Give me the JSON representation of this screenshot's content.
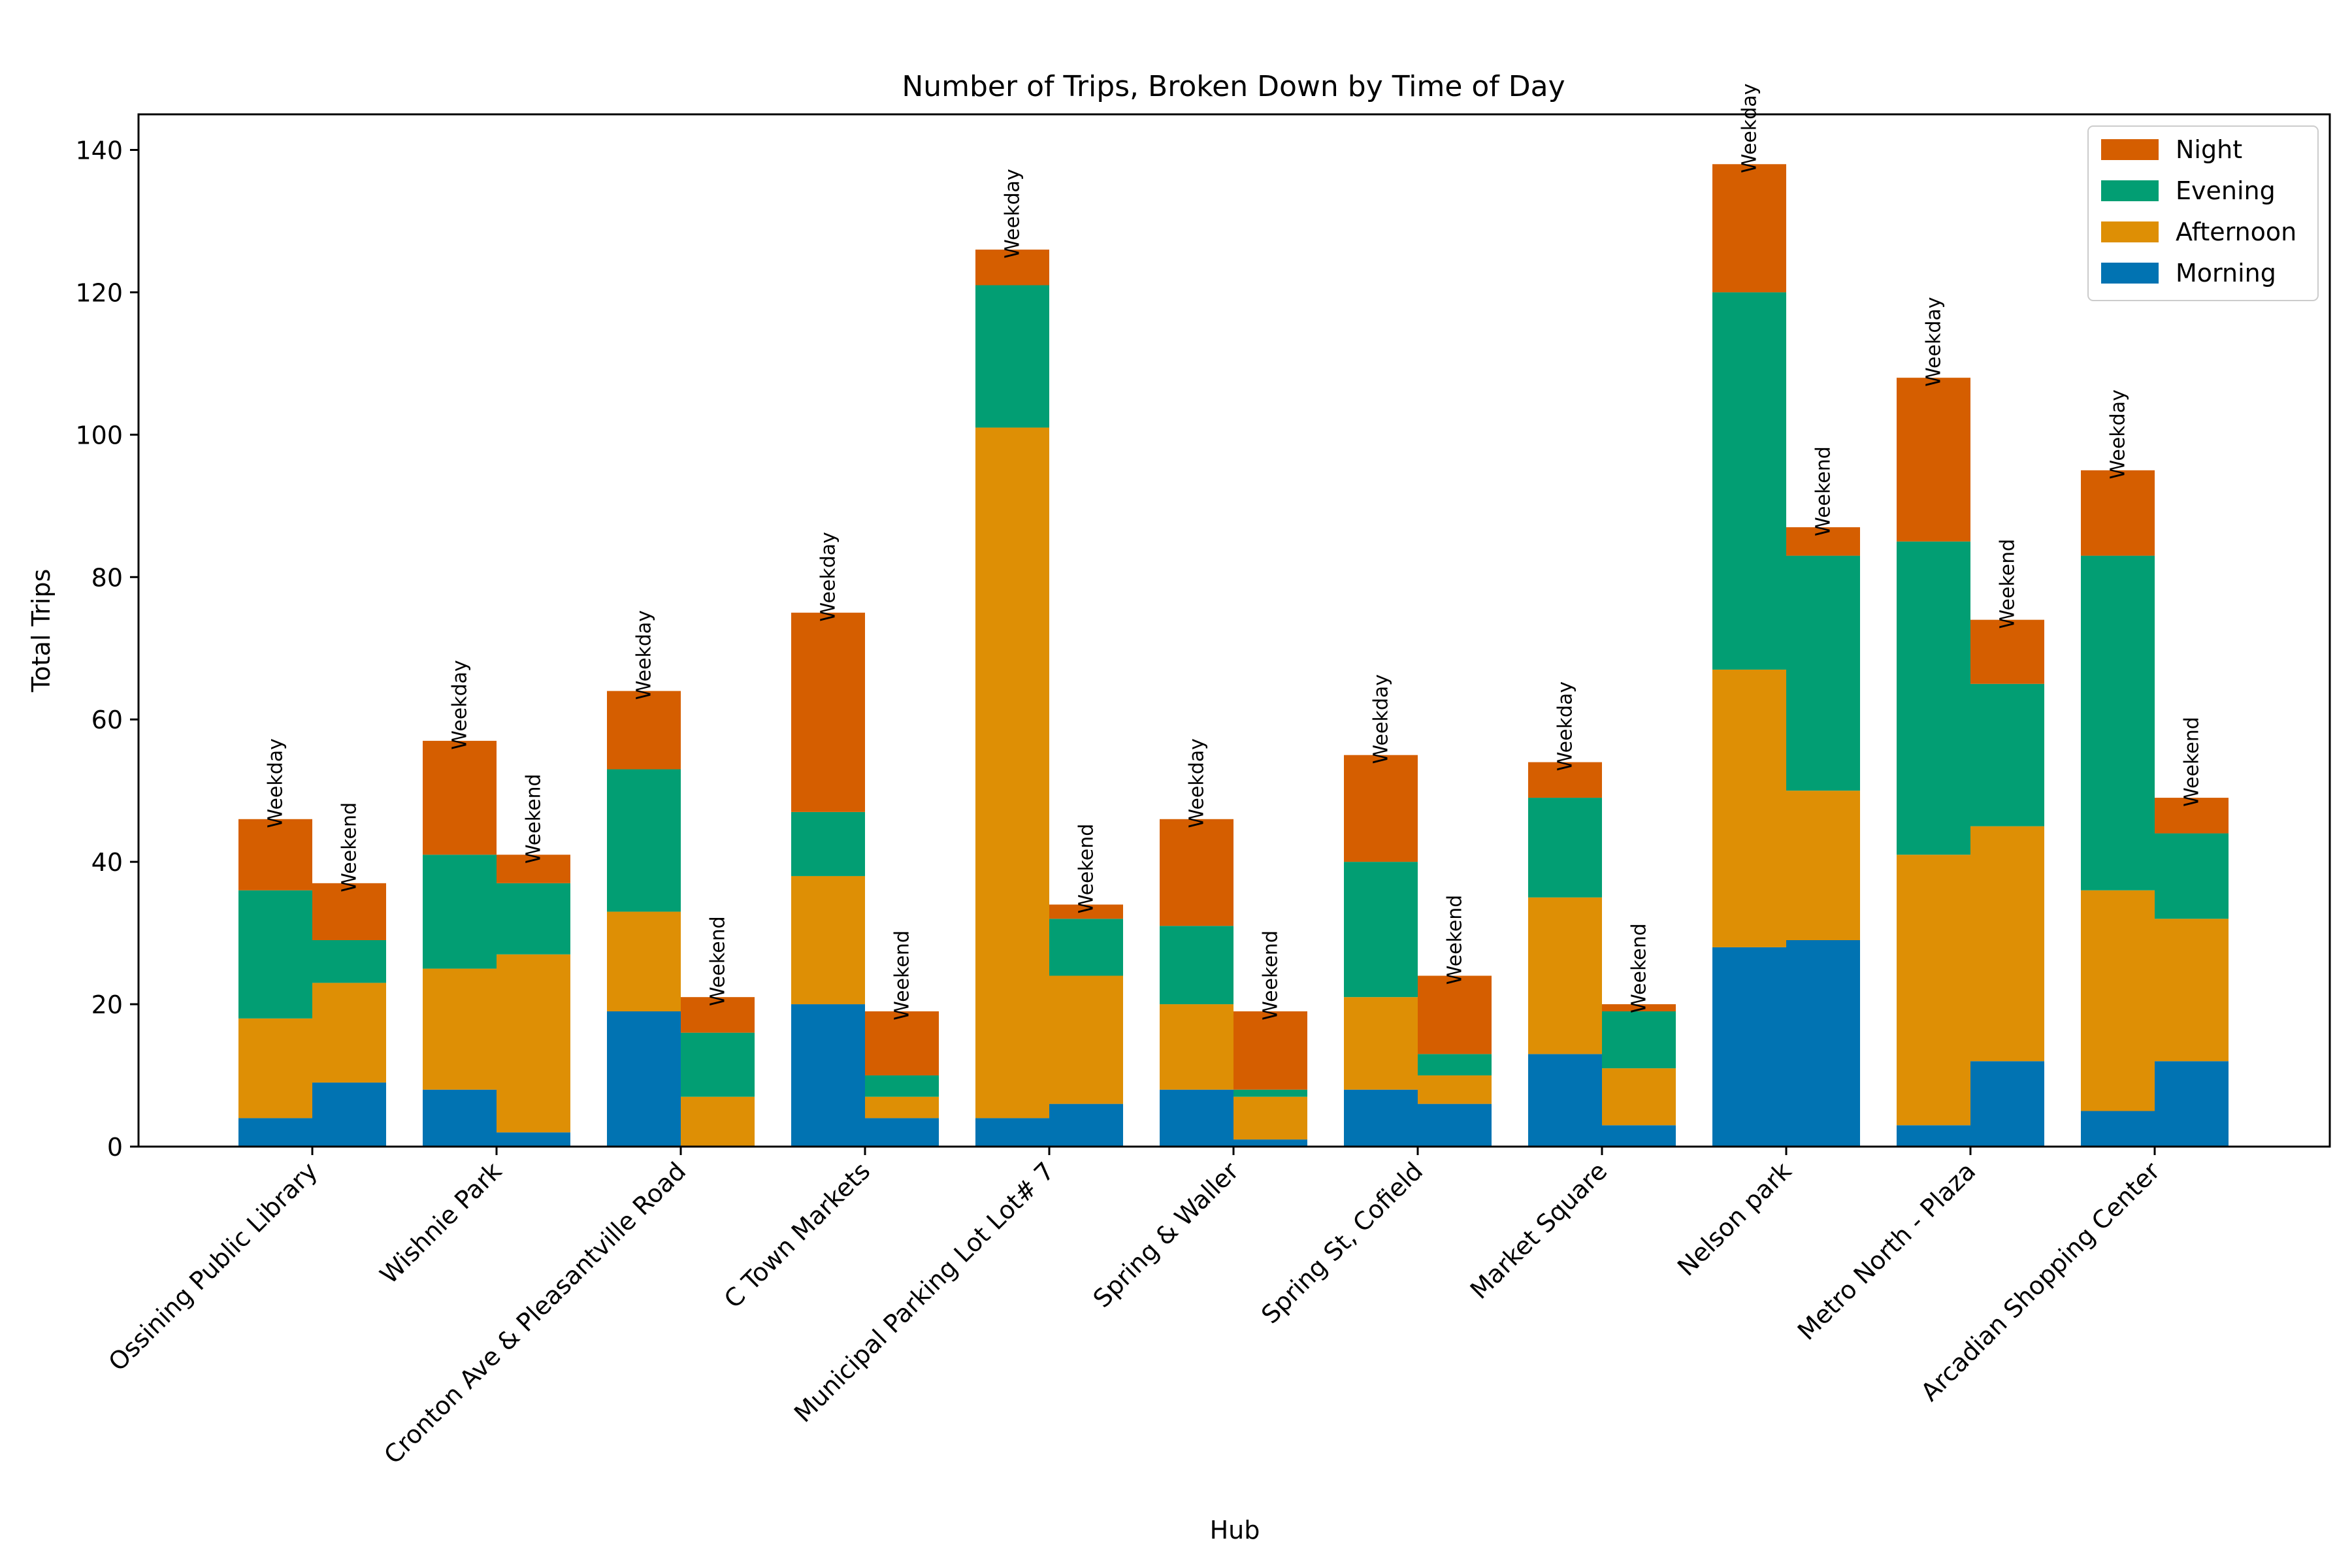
{
  "chart_data": {
    "type": "bar",
    "stacked": true,
    "grouped": true,
    "title": "Number of Trips, Broken Down by Time of Day",
    "xlabel": "Hub",
    "ylabel": "Total Trips",
    "ylim": [
      0,
      145
    ],
    "yticks": [
      0,
      20,
      40,
      60,
      80,
      100,
      120,
      140
    ],
    "grid": false,
    "legend_position": "top-right",
    "groups": [
      "Weekday",
      "Weekend"
    ],
    "categories": [
      "Ossining Public Library",
      "Wishnie Park",
      "Cronton Ave & Pleasantville Road",
      "C Town Markets",
      "Municipal Parking Lot Lot# 7",
      "Spring & Waller",
      "Spring St, Cofield",
      "Market Square",
      "Nelson park",
      "Metro North - Plaza",
      "Arcadian Shopping Center"
    ],
    "series": [
      {
        "name": "Morning",
        "color": "#0173b2",
        "weekday": [
          4,
          8,
          19,
          20,
          4,
          8,
          8,
          13,
          28,
          3,
          5
        ],
        "weekend": [
          9,
          2,
          0,
          4,
          6,
          1,
          6,
          3,
          29,
          12,
          12
        ]
      },
      {
        "name": "Afternoon",
        "color": "#de8f05",
        "weekday": [
          14,
          17,
          14,
          18,
          97,
          12,
          13,
          22,
          39,
          38,
          31
        ],
        "weekend": [
          14,
          25,
          7,
          3,
          18,
          6,
          4,
          8,
          21,
          33,
          20
        ]
      },
      {
        "name": "Evening",
        "color": "#029e73",
        "weekday": [
          18,
          16,
          20,
          9,
          20,
          11,
          19,
          14,
          53,
          44,
          47
        ],
        "weekend": [
          6,
          10,
          9,
          3,
          8,
          1,
          3,
          8,
          33,
          20,
          12
        ]
      },
      {
        "name": "Night",
        "color": "#d55e00",
        "weekday": [
          10,
          16,
          11,
          28,
          5,
          15,
          15,
          5,
          18,
          23,
          12
        ],
        "weekend": [
          8,
          4,
          5,
          9,
          2,
          11,
          11,
          1,
          4,
          9,
          5
        ]
      }
    ],
    "legend_order": [
      "Night",
      "Evening",
      "Afternoon",
      "Morning"
    ]
  }
}
